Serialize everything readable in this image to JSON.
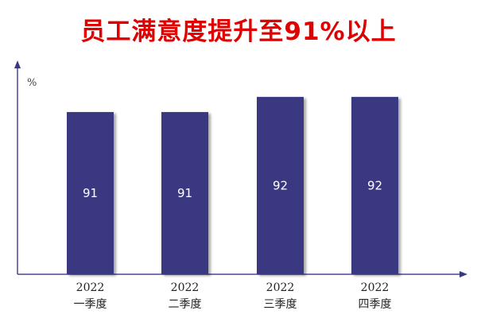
{
  "chart_data": {
    "type": "bar",
    "title": "员工满意度提升至91%以上",
    "ylabel": "%",
    "xlabel": "",
    "categories": [
      [
        "2022",
        "一季度"
      ],
      [
        "2022",
        "二季度"
      ],
      [
        "2022",
        "三季度"
      ],
      [
        "2022",
        "四季度"
      ]
    ],
    "values": [
      91,
      91,
      92,
      92
    ],
    "ylim": [
      80.3,
      94.3
    ],
    "grid": false,
    "legend": "none",
    "data_labels": true,
    "colors": {
      "bar": "#3b3882",
      "axis": "#4a4696",
      "title": "#e00000",
      "label": "#ffffff"
    }
  }
}
